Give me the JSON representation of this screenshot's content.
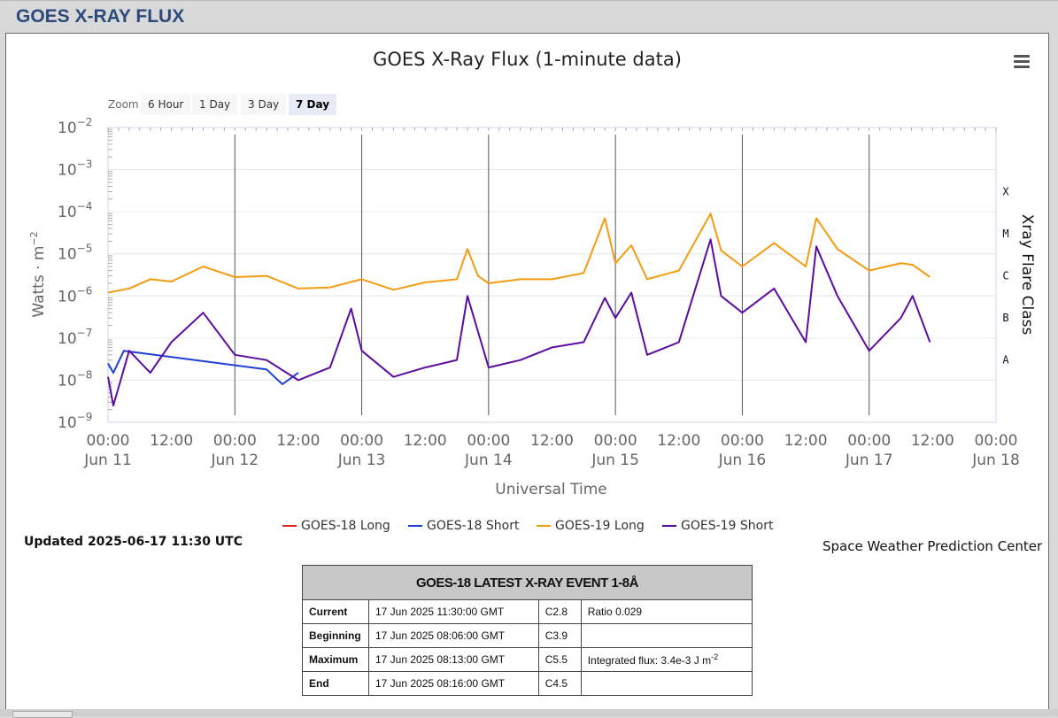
{
  "page": {
    "title": "GOES X-RAY FLUX"
  },
  "chart_data": {
    "type": "line",
    "title": "GOES X-Ray Flux (1-minute data)",
    "xlabel": "Universal Time",
    "ylabel": "Watts · m",
    "ylabel_sup": "−2",
    "y2label": "Xray Flare Class",
    "yscale": "log",
    "ylim": [
      1e-09,
      0.01
    ],
    "y_ticks": [
      {
        "base": "10",
        "exp": "−9"
      },
      {
        "base": "10",
        "exp": "−8"
      },
      {
        "base": "10",
        "exp": "−7"
      },
      {
        "base": "10",
        "exp": "−6"
      },
      {
        "base": "10",
        "exp": "−5"
      },
      {
        "base": "10",
        "exp": "−4"
      },
      {
        "base": "10",
        "exp": "−3"
      },
      {
        "base": "10",
        "exp": "−2"
      }
    ],
    "flare_classes": [
      {
        "label": "X",
        "flux": 0.0001
      },
      {
        "label": "M",
        "flux": 1e-05
      },
      {
        "label": "C",
        "flux": 1e-06
      },
      {
        "label": "B",
        "flux": 1e-07
      },
      {
        "label": "A",
        "flux": 1e-08
      }
    ],
    "xlim": [
      "2025-06-11 00:00",
      "2025-06-18 00:00"
    ],
    "x_ticks": [
      {
        "time": "00:00",
        "date": "Jun 11"
      },
      {
        "time": "12:00",
        "date": ""
      },
      {
        "time": "00:00",
        "date": "Jun 12"
      },
      {
        "time": "12:00",
        "date": ""
      },
      {
        "time": "00:00",
        "date": "Jun 13"
      },
      {
        "time": "12:00",
        "date": ""
      },
      {
        "time": "00:00",
        "date": "Jun 14"
      },
      {
        "time": "12:00",
        "date": ""
      },
      {
        "time": "00:00",
        "date": "Jun 15"
      },
      {
        "time": "12:00",
        "date": ""
      },
      {
        "time": "00:00",
        "date": "Jun 16"
      },
      {
        "time": "12:00",
        "date": ""
      },
      {
        "time": "00:00",
        "date": "Jun 17"
      },
      {
        "time": "12:00",
        "date": ""
      },
      {
        "time": "00:00",
        "date": "Jun 18"
      }
    ],
    "series": [
      {
        "name": "GOES-18 Long",
        "color": "#e8231f",
        "points": []
      },
      {
        "name": "GOES-18 Short",
        "color": "#1f3fd6",
        "points": [
          [
            "2025-06-11 00:00",
            2.5e-08
          ],
          [
            "2025-06-11 01:00",
            1.5e-08
          ],
          [
            "2025-06-11 03:00",
            5e-08
          ],
          [
            "2025-06-12 06:00",
            1.8e-08
          ],
          [
            "2025-06-12 09:00",
            8e-09
          ],
          [
            "2025-06-12 12:00",
            1.5e-08
          ]
        ]
      },
      {
        "name": "GOES-19 Long",
        "color": "#f39c12",
        "points": [
          [
            "2025-06-11 00:00",
            1.2e-06
          ],
          [
            "2025-06-11 04:00",
            1.5e-06
          ],
          [
            "2025-06-11 08:00",
            2.5e-06
          ],
          [
            "2025-06-11 12:00",
            2.2e-06
          ],
          [
            "2025-06-11 18:00",
            5e-06
          ],
          [
            "2025-06-12 00:00",
            2.8e-06
          ],
          [
            "2025-06-12 06:00",
            3e-06
          ],
          [
            "2025-06-12 12:00",
            1.5e-06
          ],
          [
            "2025-06-12 18:00",
            1.6e-06
          ],
          [
            "2025-06-13 00:00",
            2.5e-06
          ],
          [
            "2025-06-13 06:00",
            1.4e-06
          ],
          [
            "2025-06-13 12:00",
            2.1e-06
          ],
          [
            "2025-06-13 18:00",
            2.5e-06
          ],
          [
            "2025-06-13 20:00",
            1.3e-05
          ],
          [
            "2025-06-13 22:00",
            3e-06
          ],
          [
            "2025-06-14 00:00",
            2e-06
          ],
          [
            "2025-06-14 06:00",
            2.5e-06
          ],
          [
            "2025-06-14 12:00",
            2.5e-06
          ],
          [
            "2025-06-14 18:00",
            3.5e-06
          ],
          [
            "2025-06-14 22:00",
            7e-05
          ],
          [
            "2025-06-15 00:00",
            6e-06
          ],
          [
            "2025-06-15 03:00",
            1.6e-05
          ],
          [
            "2025-06-15 06:00",
            2.5e-06
          ],
          [
            "2025-06-15 12:00",
            4e-06
          ],
          [
            "2025-06-15 18:00",
            9e-05
          ],
          [
            "2025-06-15 20:00",
            1.2e-05
          ],
          [
            "2025-06-16 00:00",
            5e-06
          ],
          [
            "2025-06-16 06:00",
            1.8e-05
          ],
          [
            "2025-06-16 12:00",
            5e-06
          ],
          [
            "2025-06-16 14:00",
            7e-05
          ],
          [
            "2025-06-16 18:00",
            1.3e-05
          ],
          [
            "2025-06-17 00:00",
            4e-06
          ],
          [
            "2025-06-17 06:00",
            6e-06
          ],
          [
            "2025-06-17 08:13",
            5.5e-06
          ],
          [
            "2025-06-17 11:30",
            2.8e-06
          ]
        ]
      },
      {
        "name": "GOES-19 Short",
        "color": "#5a0d9e",
        "points": [
          [
            "2025-06-11 00:00",
            1.2e-08
          ],
          [
            "2025-06-11 01:00",
            2.5e-09
          ],
          [
            "2025-06-11 04:00",
            5e-08
          ],
          [
            "2025-06-11 08:00",
            1.5e-08
          ],
          [
            "2025-06-11 12:00",
            8e-08
          ],
          [
            "2025-06-11 18:00",
            4e-07
          ],
          [
            "2025-06-12 00:00",
            4e-08
          ],
          [
            "2025-06-12 06:00",
            3e-08
          ],
          [
            "2025-06-12 12:00",
            1e-08
          ],
          [
            "2025-06-12 18:00",
            2e-08
          ],
          [
            "2025-06-12 22:00",
            5e-07
          ],
          [
            "2025-06-13 00:00",
            5e-08
          ],
          [
            "2025-06-13 06:00",
            1.2e-08
          ],
          [
            "2025-06-13 12:00",
            2e-08
          ],
          [
            "2025-06-13 18:00",
            3e-08
          ],
          [
            "2025-06-13 20:00",
            1e-06
          ],
          [
            "2025-06-14 00:00",
            2e-08
          ],
          [
            "2025-06-14 06:00",
            3e-08
          ],
          [
            "2025-06-14 12:00",
            6e-08
          ],
          [
            "2025-06-14 18:00",
            8e-08
          ],
          [
            "2025-06-14 22:00",
            9e-07
          ],
          [
            "2025-06-15 00:00",
            3e-07
          ],
          [
            "2025-06-15 03:00",
            1.2e-06
          ],
          [
            "2025-06-15 06:00",
            4e-08
          ],
          [
            "2025-06-15 12:00",
            8e-08
          ],
          [
            "2025-06-15 18:00",
            2.2e-05
          ],
          [
            "2025-06-15 20:00",
            1e-06
          ],
          [
            "2025-06-16 00:00",
            4e-07
          ],
          [
            "2025-06-16 06:00",
            1.5e-06
          ],
          [
            "2025-06-16 12:00",
            8e-08
          ],
          [
            "2025-06-16 14:00",
            1.5e-05
          ],
          [
            "2025-06-16 18:00",
            1e-06
          ],
          [
            "2025-06-17 00:00",
            5e-08
          ],
          [
            "2025-06-17 06:00",
            3e-07
          ],
          [
            "2025-06-17 08:13",
            1e-06
          ],
          [
            "2025-06-17 11:30",
            8e-08
          ]
        ]
      }
    ],
    "legend": "bottom-center",
    "grid": true
  },
  "zoom": {
    "label": "Zoom",
    "buttons": [
      "6 Hour",
      "1 Day",
      "3 Day",
      "7 Day"
    ],
    "active": "7 Day"
  },
  "footer": {
    "updated": "Updated 2025-06-17 11:30 UTC",
    "credit": "Space Weather Prediction Center"
  },
  "event_table": {
    "title": "GOES-18 LATEST X-RAY EVENT 1-8Å",
    "rows": [
      {
        "label": "Current",
        "time": "17 Jun 2025 11:30:00 GMT",
        "class": "C2.8",
        "extra": "Ratio 0.029"
      },
      {
        "label": "Beginning",
        "time": "17 Jun 2025 08:06:00 GMT",
        "class": "C3.9",
        "extra": ""
      },
      {
        "label": "Maximum",
        "time": "17 Jun 2025 08:13:00 GMT",
        "class": "C5.5",
        "extra": "Integrated flux: 3.4e-3 J m",
        "extra_sup": "-2"
      },
      {
        "label": "End",
        "time": "17 Jun 2025 08:16:00 GMT",
        "class": "C4.5",
        "extra": ""
      }
    ]
  }
}
